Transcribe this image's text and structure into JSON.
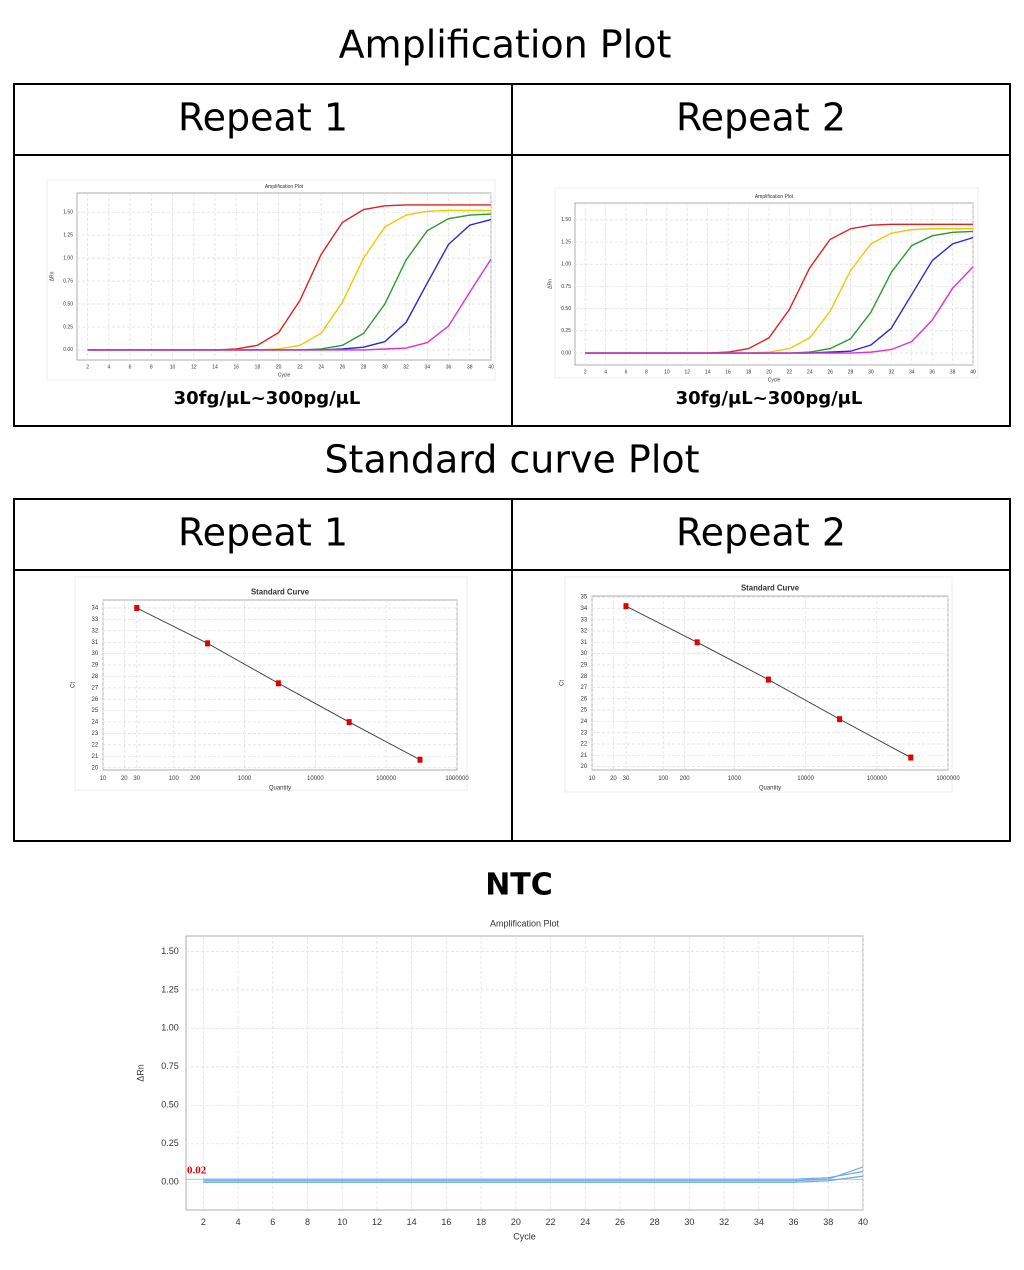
{
  "headings": {
    "amplification": "Amplification Plot",
    "standard": "Standard curve Plot",
    "ntc": "NTC"
  },
  "tables": [
    {
      "headers": [
        "Repeat 1",
        "Repeat 2"
      ],
      "captions": [
        "30fg/μL~300pg/μL",
        "30fg/μL~300pg/μL"
      ]
    },
    {
      "headers": [
        "Repeat 1",
        "Repeat 2"
      ]
    }
  ],
  "chart_data": [
    {
      "type": "line",
      "title": "Amplification Plot",
      "x_label": "Cycle",
      "y_label": "ΔRn",
      "x": [
        2,
        4,
        6,
        8,
        10,
        12,
        14,
        16,
        18,
        20,
        22,
        24,
        26,
        28,
        30,
        32,
        34,
        36,
        38,
        40
      ],
      "series": [
        {
          "color": "#e02020",
          "values": [
            0,
            0,
            0,
            0,
            0,
            0,
            0,
            0.01,
            0.05,
            0.19,
            0.54,
            1.04,
            1.39,
            1.53,
            1.57,
            1.58,
            1.58,
            1.58,
            1.58,
            1.58
          ]
        },
        {
          "color": "#f0c800",
          "values": [
            0,
            0,
            0,
            0,
            0,
            0,
            0,
            0,
            0,
            0.01,
            0.05,
            0.18,
            0.52,
            1.0,
            1.34,
            1.47,
            1.51,
            1.52,
            1.52,
            1.52
          ]
        },
        {
          "color": "#2a9a2a",
          "values": [
            0,
            0,
            0,
            0,
            0,
            0,
            0,
            0,
            0,
            0,
            0,
            0.01,
            0.05,
            0.18,
            0.5,
            0.98,
            1.3,
            1.43,
            1.47,
            1.48
          ]
        },
        {
          "color": "#2828d8",
          "values": [
            0,
            0,
            0,
            0,
            0,
            0,
            0,
            0,
            0,
            0,
            0,
            0,
            0.01,
            0.03,
            0.09,
            0.3,
            0.73,
            1.15,
            1.36,
            1.42
          ]
        },
        {
          "color": "#e030d0",
          "values": [
            0,
            0,
            0,
            0,
            0,
            0,
            0,
            0,
            0,
            0,
            0,
            0,
            0,
            0,
            0.01,
            0.02,
            0.08,
            0.26,
            0.63,
            0.99
          ]
        }
      ],
      "xlim": [
        1,
        40
      ],
      "ylim": [
        -0.11,
        1.71
      ],
      "xticks": [
        2,
        4,
        6,
        8,
        10,
        12,
        14,
        16,
        18,
        20,
        22,
        24,
        26,
        28,
        30,
        32,
        34,
        36,
        38,
        40
      ],
      "yticks": [
        {
          "value": 0,
          "label": "0.00"
        },
        0.25,
        {
          "value": 0.5,
          "label": "0.50"
        },
        0.75,
        {
          "value": 1,
          "label": "1.00"
        },
        1.25,
        {
          "value": 1.5,
          "label": "1.50"
        }
      ],
      "grid": true
    },
    {
      "type": "line",
      "title": "Amplification Plot",
      "x_label": "Cycle",
      "y_label": "ΔRn",
      "x": [
        2,
        4,
        6,
        8,
        10,
        12,
        14,
        16,
        18,
        20,
        22,
        24,
        26,
        28,
        30,
        32,
        34,
        36,
        38,
        40
      ],
      "series": [
        {
          "color": "#e02020",
          "values": [
            0,
            0,
            0,
            0,
            0,
            0,
            0,
            0.01,
            0.05,
            0.17,
            0.49,
            0.96,
            1.28,
            1.4,
            1.44,
            1.45,
            1.45,
            1.45,
            1.45,
            1.45
          ]
        },
        {
          "color": "#f0c800",
          "values": [
            0,
            0,
            0,
            0,
            0,
            0,
            0,
            0,
            0,
            0.01,
            0.05,
            0.17,
            0.47,
            0.93,
            1.23,
            1.35,
            1.39,
            1.4,
            1.4,
            1.4
          ]
        },
        {
          "color": "#2a9a2a",
          "values": [
            0,
            0,
            0,
            0,
            0,
            0,
            0,
            0,
            0,
            0,
            0,
            0.01,
            0.05,
            0.16,
            0.46,
            0.91,
            1.21,
            1.32,
            1.36,
            1.37
          ]
        },
        {
          "color": "#2828d8",
          "values": [
            0,
            0,
            0,
            0,
            0,
            0,
            0,
            0,
            0,
            0,
            0,
            0,
            0.01,
            0.02,
            0.09,
            0.28,
            0.66,
            1.04,
            1.23,
            1.3
          ]
        },
        {
          "color": "#e030d0",
          "values": [
            0,
            0,
            0,
            0,
            0,
            0,
            0,
            0,
            0,
            0,
            0,
            0,
            0,
            0,
            0.01,
            0.04,
            0.13,
            0.37,
            0.73,
            0.97
          ]
        }
      ],
      "xlim": [
        1,
        40
      ],
      "ylim": [
        -0.135,
        1.69
      ],
      "xticks": [
        2,
        4,
        6,
        8,
        10,
        12,
        14,
        16,
        18,
        20,
        22,
        24,
        26,
        28,
        30,
        32,
        34,
        36,
        38,
        40
      ],
      "yticks": [
        {
          "value": 0,
          "label": "0.00"
        },
        0.25,
        {
          "value": 0.5,
          "label": "0.50"
        },
        0.75,
        {
          "value": 1,
          "label": "1.00"
        },
        1.25,
        {
          "value": 1.5,
          "label": "1.50"
        }
      ],
      "grid": true
    },
    {
      "type": "scatter",
      "title": "Standard Curve",
      "x_label": "Quantity",
      "y_label": "Ct",
      "x": [
        30,
        300,
        3000,
        30000,
        300000
      ],
      "values": [
        34.0,
        30.9,
        27.4,
        24.0,
        20.7
      ],
      "color": "#e00000",
      "xscale": "log",
      "xlim": [
        10,
        1000000
      ],
      "ylim": [
        19.8,
        34.7
      ],
      "xticks": [
        10,
        20,
        30,
        100,
        200,
        1000,
        10000,
        100000,
        1000000
      ],
      "yticks": [
        20,
        21,
        22,
        23,
        24,
        25,
        26,
        27,
        28,
        29,
        30,
        31,
        32,
        33,
        34
      ],
      "fit_line": true,
      "grid": true
    },
    {
      "type": "scatter",
      "title": "Standard Curve",
      "x_label": "Quantity",
      "y_label": "Ct",
      "x": [
        30,
        300,
        3000,
        30000,
        300000
      ],
      "values": [
        34.2,
        31.0,
        27.7,
        24.2,
        20.8
      ],
      "color": "#e00000",
      "xscale": "log",
      "xlim": [
        10,
        1000000
      ],
      "ylim": [
        19.7,
        35.1
      ],
      "xticks": [
        10,
        20,
        30,
        100,
        200,
        1000,
        10000,
        100000,
        1000000
      ],
      "yticks": [
        20,
        21,
        22,
        23,
        24,
        25,
        26,
        27,
        28,
        29,
        30,
        31,
        32,
        33,
        34,
        35
      ],
      "fit_line": true,
      "grid": true
    },
    {
      "type": "line",
      "title": "Amplification Plot",
      "x_label": "Cycle",
      "y_label": "ΔRn",
      "x": [
        2,
        4,
        6,
        8,
        10,
        12,
        14,
        16,
        18,
        20,
        22,
        24,
        26,
        28,
        30,
        32,
        34,
        36,
        38,
        40
      ],
      "series": [
        {
          "color": "#6fa8e8",
          "values": [
            0.01,
            0.01,
            0.01,
            0.01,
            0.01,
            0.01,
            0.01,
            0.01,
            0.01,
            0.01,
            0.01,
            0.01,
            0.01,
            0.01,
            0.01,
            0.01,
            0.01,
            0.01,
            0.02,
            0.1
          ]
        },
        {
          "color": "#6fa8e8",
          "values": [
            0.02,
            0.02,
            0.02,
            0.02,
            0.02,
            0.02,
            0.02,
            0.02,
            0.02,
            0.02,
            0.02,
            0.02,
            0.02,
            0.02,
            0.02,
            0.02,
            0.02,
            0.02,
            0.03,
            0.07
          ]
        },
        {
          "color": "#6fa8e8",
          "values": [
            0,
            0,
            0,
            0,
            0,
            0,
            0,
            0,
            0,
            0,
            0,
            0,
            0,
            0,
            0,
            0,
            0,
            0,
            0.01,
            0.04
          ]
        }
      ],
      "threshold": 0.02,
      "threshold_color": "#e00000",
      "xlim": [
        1,
        40
      ],
      "ylim": [
        -0.18,
        1.6
      ],
      "xticks": [
        2,
        4,
        6,
        8,
        10,
        12,
        14,
        16,
        18,
        20,
        22,
        24,
        26,
        28,
        30,
        32,
        34,
        36,
        38,
        40
      ],
      "yticks": [
        {
          "value": 0,
          "label": "0.00"
        },
        0.25,
        {
          "value": 0.5,
          "label": "0.50"
        },
        0.75,
        {
          "value": 1,
          "label": "1.00"
        },
        1.25,
        {
          "value": 1.5,
          "label": "1.50"
        }
      ],
      "grid": true
    }
  ]
}
